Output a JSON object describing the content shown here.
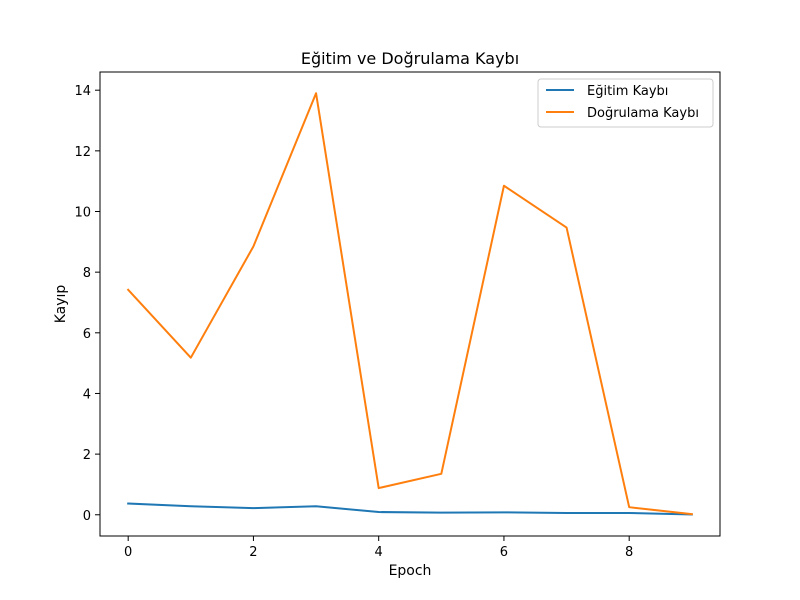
{
  "chart_data": {
    "type": "line",
    "title": "Eğitim ve Doğrulama Kaybı",
    "xlabel": "Epoch",
    "ylabel": "Kayıp",
    "x": [
      0,
      1,
      2,
      3,
      4,
      5,
      6,
      7,
      8,
      9
    ],
    "xlim": [
      -0.45,
      9.45
    ],
    "ylim": [
      -0.7,
      14.6
    ],
    "xticks": [
      0,
      2,
      4,
      6,
      8
    ],
    "yticks": [
      0,
      2,
      4,
      6,
      8,
      10,
      12,
      14
    ],
    "grid": false,
    "legend_position": "top-right",
    "series": [
      {
        "name": "Eğitim Kaybı",
        "color": "#1f77b4",
        "values": [
          0.37,
          0.28,
          0.22,
          0.28,
          0.09,
          0.07,
          0.08,
          0.06,
          0.06,
          0.01
        ]
      },
      {
        "name": "Doğrulama Kaybı",
        "color": "#ff7f0e",
        "values": [
          7.42,
          5.18,
          8.85,
          13.9,
          0.88,
          1.35,
          10.85,
          9.47,
          0.25,
          0.02
        ]
      }
    ]
  }
}
